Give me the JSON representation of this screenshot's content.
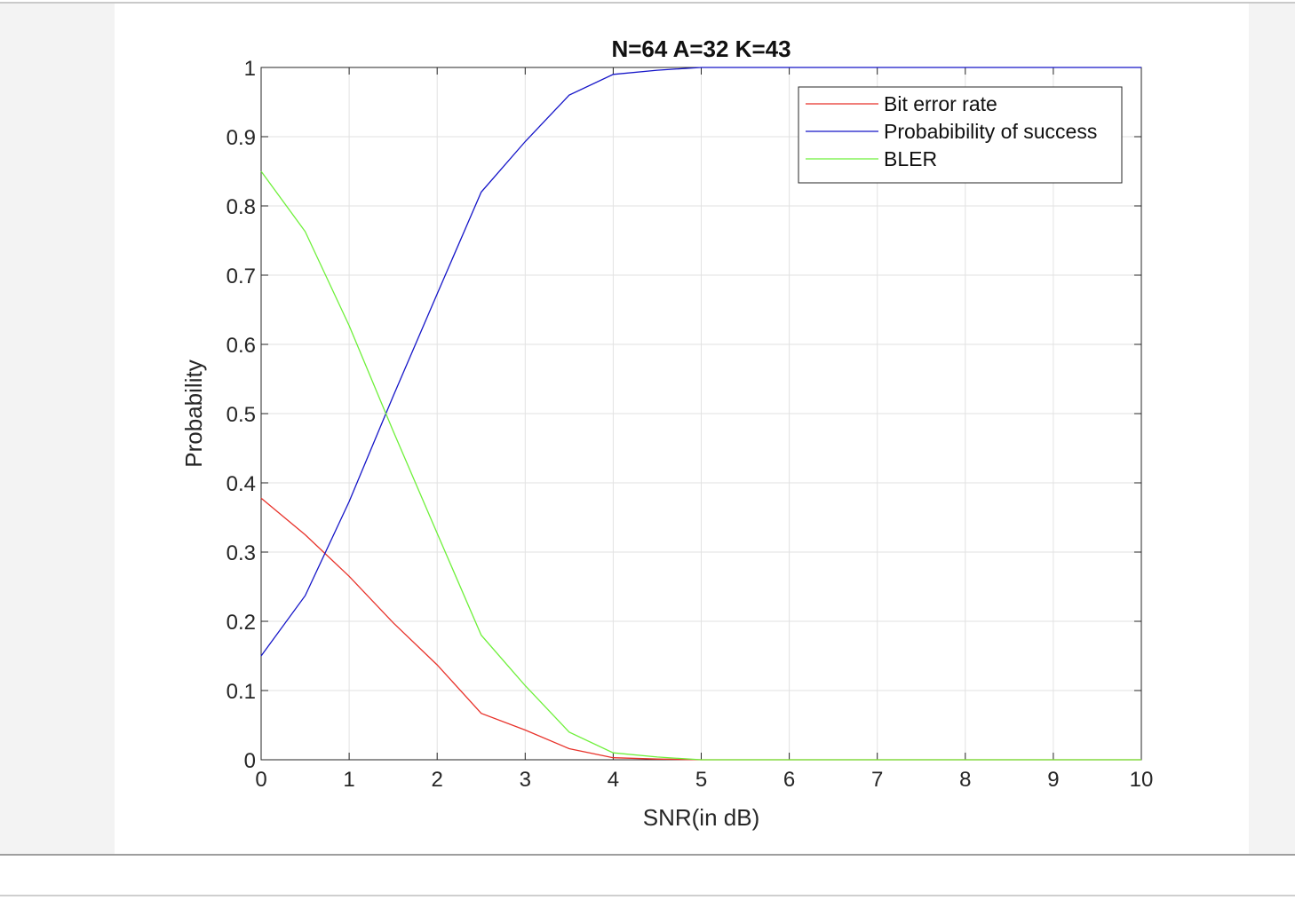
{
  "chart_data": {
    "type": "line",
    "title": "N=64 A=32 K=43",
    "xlabel": "SNR(in dB)",
    "ylabel": "Probability",
    "xlim": [
      0,
      10
    ],
    "ylim": [
      0,
      1
    ],
    "xticks": [
      0,
      1,
      2,
      3,
      4,
      5,
      6,
      7,
      8,
      9,
      10
    ],
    "yticks": [
      0,
      0.1,
      0.2,
      0.3,
      0.4,
      0.5,
      0.6,
      0.7,
      0.8,
      0.9,
      1
    ],
    "xtick_labels": [
      "0",
      "1",
      "2",
      "3",
      "4",
      "5",
      "6",
      "7",
      "8",
      "9",
      "10"
    ],
    "ytick_labels": [
      "0",
      "0.1",
      "0.2",
      "0.3",
      "0.4",
      "0.5",
      "0.6",
      "0.7",
      "0.8",
      "0.9",
      "1"
    ],
    "grid": true,
    "legend_position": "top-right",
    "x": [
      0,
      0.5,
      1,
      1.5,
      2,
      2.5,
      3,
      3.5,
      4,
      4.5,
      5,
      5.5,
      6,
      6.5,
      7,
      7.5,
      8,
      8.5,
      9,
      9.5,
      10
    ],
    "series": [
      {
        "name": "Bit error rate",
        "color": "#e8322a",
        "values": [
          0.378,
          0.325,
          0.265,
          0.198,
          0.137,
          0.067,
          0.043,
          0.016,
          0.003,
          0.001,
          0,
          0,
          0,
          0,
          0,
          0,
          0,
          0,
          0,
          0,
          0
        ]
      },
      {
        "name": "Probabibility of success",
        "color": "#1515c8",
        "values": [
          0.15,
          0.237,
          0.373,
          0.525,
          0.673,
          0.82,
          0.893,
          0.96,
          0.99,
          0.996,
          1,
          1,
          1,
          1,
          1,
          1,
          1,
          1,
          1,
          1,
          1
        ]
      },
      {
        "name": "BLER",
        "color": "#6ef03a",
        "values": [
          0.85,
          0.763,
          0.627,
          0.475,
          0.327,
          0.18,
          0.107,
          0.04,
          0.01,
          0.004,
          0,
          0,
          0,
          0,
          0,
          0,
          0,
          0,
          0,
          0,
          0
        ]
      }
    ]
  }
}
